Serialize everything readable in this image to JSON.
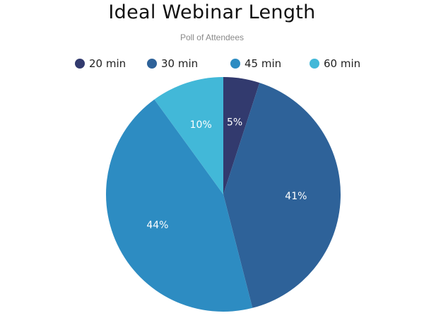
{
  "chart_data": {
    "type": "pie",
    "title": "Ideal Webinar Length",
    "subtitle": "Poll of Attendees",
    "legend_position": "top",
    "slices": [
      {
        "label": "20 min",
        "value": 5,
        "display": "5%",
        "color": "#323a6e"
      },
      {
        "label": "30 min",
        "value": 41,
        "display": "41%",
        "color": "#2e6299"
      },
      {
        "label": "45 min",
        "value": 44,
        "display": "44%",
        "color": "#2d8cc2"
      },
      {
        "label": "60 min",
        "value": 10,
        "display": "10%",
        "color": "#42b8d8"
      }
    ]
  }
}
